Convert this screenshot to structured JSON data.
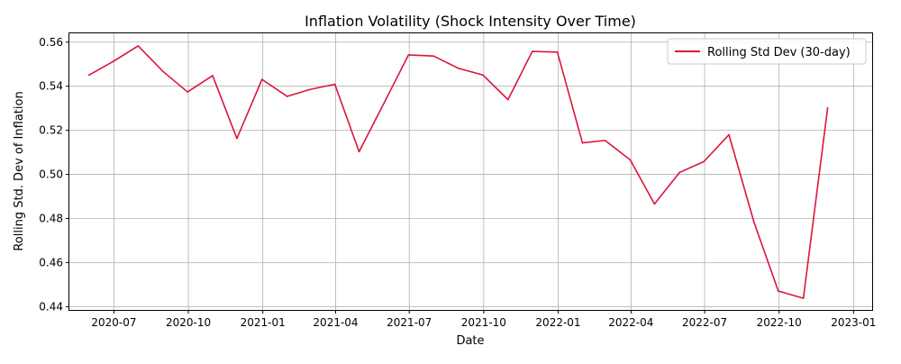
{
  "chart_data": {
    "type": "line",
    "title": "Inflation Volatility (Shock Intensity Over Time)",
    "xlabel": "Date",
    "ylabel": "Rolling Std. Dev of Inflation",
    "x_ticks": [
      "2020-07",
      "2020-10",
      "2021-01",
      "2021-04",
      "2021-07",
      "2021-10",
      "2022-01",
      "2022-04",
      "2022-07",
      "2022-10",
      "2023-01"
    ],
    "y_ticks": [
      0.44,
      0.46,
      0.48,
      0.5,
      0.52,
      0.54,
      0.56
    ],
    "xlim": [
      "2020-05-07",
      "2023-01-24"
    ],
    "ylim": [
      0.4385,
      0.564
    ],
    "grid": true,
    "legend_position": "top-right",
    "series": [
      {
        "name": "Rolling Std Dev (30-day)",
        "color": "#dc143c",
        "x": [
          "2020-05-31",
          "2020-06-30",
          "2020-07-31",
          "2020-08-31",
          "2020-09-30",
          "2020-10-31",
          "2020-11-30",
          "2020-12-31",
          "2021-01-31",
          "2021-02-28",
          "2021-03-31",
          "2021-04-30",
          "2021-05-31",
          "2021-06-30",
          "2021-07-31",
          "2021-08-31",
          "2021-09-30",
          "2021-10-31",
          "2021-11-30",
          "2021-12-31",
          "2022-01-31",
          "2022-02-28",
          "2022-03-31",
          "2022-04-30",
          "2022-05-31",
          "2022-06-30",
          "2022-07-31",
          "2022-08-31",
          "2022-09-30",
          "2022-10-31",
          "2022-11-30"
        ],
        "values": [
          0.545,
          0.5512,
          0.5583,
          0.5466,
          0.5374,
          0.5448,
          0.5163,
          0.5431,
          0.5354,
          0.5385,
          0.5409,
          0.5103,
          0.5325,
          0.5542,
          0.5537,
          0.5481,
          0.5451,
          0.5339,
          0.5558,
          0.5555,
          0.5143,
          0.5154,
          0.5066,
          0.4866,
          0.5009,
          0.5058,
          0.518,
          0.4783,
          0.4471,
          0.4438,
          0.5302
        ]
      }
    ]
  }
}
